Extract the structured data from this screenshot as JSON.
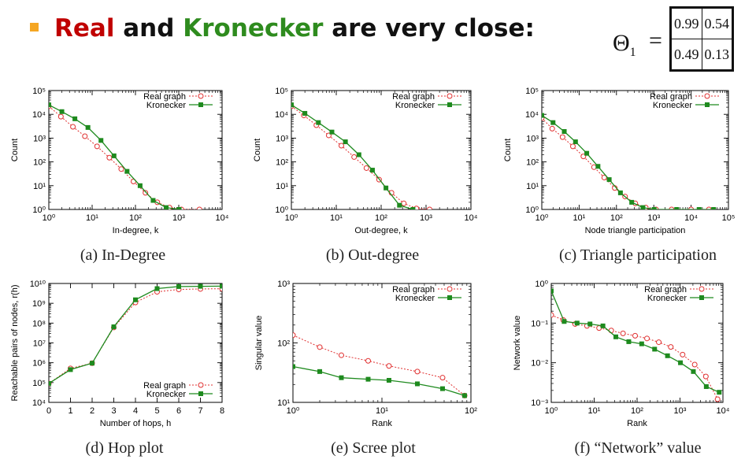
{
  "title": {
    "real": "Real",
    "and": " and ",
    "kron": "Kronecker",
    "rest": " are very close:"
  },
  "theta": {
    "label": "Θ",
    "subscript": "1",
    "equals": "=",
    "matrix": [
      [
        "0.99",
        "0.54"
      ],
      [
        "0.49",
        "0.13"
      ]
    ]
  },
  "colors": {
    "real": "#e03030",
    "kronecker": "#1e8a1e",
    "title_real": "#c00000",
    "title_kronecker": "#2e8b1e",
    "bullet": "#f5a623"
  },
  "chart_data": [
    {
      "type": "line",
      "caption": "(a) In-Degree",
      "xlabel": "In-degree, k",
      "ylabel": "Count",
      "xscale": "log",
      "yscale": "log",
      "xlim": [
        1,
        10000
      ],
      "ylim": [
        1,
        100000
      ],
      "xticks": [
        1,
        10,
        100,
        1000,
        10000
      ],
      "xticklabels": [
        "10⁰",
        "10¹",
        "10²",
        "10³",
        "10⁴"
      ],
      "yticks": [
        1,
        10,
        100,
        1000,
        10000,
        100000
      ],
      "yticklabels": [
        "10⁰",
        "10¹",
        "10²",
        "10³",
        "10⁴",
        "10⁵"
      ],
      "legend_position": "top-right",
      "series": [
        {
          "name": "Real graph",
          "marker": "circle",
          "x": [
            1,
            1.9,
            3.6,
            6.8,
            13,
            25,
            47,
            90,
            170,
            320,
            610,
            1150,
            3000
          ],
          "y": [
            22000,
            8000,
            3000,
            1200,
            450,
            150,
            50,
            15,
            5,
            2,
            1.2,
            1,
            1
          ]
        },
        {
          "name": "Kronecker",
          "marker": "square",
          "x": [
            1,
            2,
            4,
            8,
            16,
            32,
            64,
            128,
            256,
            512,
            1024
          ],
          "y": [
            25000,
            13000,
            6500,
            2800,
            800,
            180,
            40,
            10,
            2.4,
            1.2,
            1
          ]
        }
      ]
    },
    {
      "type": "line",
      "caption": "(b) Out-degree",
      "xlabel": "Out-degree, k",
      "ylabel": "Count",
      "xscale": "log",
      "yscale": "log",
      "xlim": [
        1,
        10000
      ],
      "ylim": [
        1,
        100000
      ],
      "xticks": [
        1,
        10,
        100,
        1000,
        10000
      ],
      "xticklabels": [
        "10⁰",
        "10¹",
        "10²",
        "10³",
        "10⁴"
      ],
      "yticks": [
        1,
        10,
        100,
        1000,
        10000,
        100000
      ],
      "yticklabels": [
        "10⁰",
        "10¹",
        "10²",
        "10³",
        "10⁴",
        "10⁵"
      ],
      "legend_position": "top-right",
      "series": [
        {
          "name": "Real graph",
          "marker": "circle",
          "x": [
            1,
            1.9,
            3.6,
            6.8,
            13,
            25,
            47,
            90,
            170,
            320,
            610,
            1200
          ],
          "y": [
            22000,
            9000,
            3500,
            1300,
            480,
            160,
            55,
            18,
            5,
            1.8,
            1.1,
            1
          ]
        },
        {
          "name": "Kronecker",
          "marker": "square",
          "x": [
            1,
            2,
            4,
            8,
            16,
            32,
            64,
            128,
            256,
            512
          ],
          "y": [
            25000,
            11000,
            4500,
            1800,
            700,
            200,
            45,
            8,
            1.5,
            1
          ]
        }
      ]
    },
    {
      "type": "line",
      "caption": "(c) Triangle participation",
      "xlabel": "Node triangle participation",
      "ylabel": "Count",
      "xscale": "log",
      "yscale": "log",
      "xlim": [
        1,
        100000
      ],
      "ylim": [
        1,
        100000
      ],
      "xticks": [
        1,
        10,
        100,
        1000,
        10000,
        100000
      ],
      "xticklabels": [
        "10⁰",
        "10¹",
        "10²",
        "10³",
        "10⁴",
        "10⁵"
      ],
      "yticks": [
        1,
        10,
        100,
        1000,
        10000,
        100000
      ],
      "yticklabels": [
        "10⁰",
        "10¹",
        "10²",
        "10³",
        "10⁴",
        "10⁵"
      ],
      "legend_position": "top-right",
      "series": [
        {
          "name": "Real graph",
          "marker": "circle",
          "x": [
            1,
            1.9,
            3.6,
            6.8,
            13,
            25,
            47,
            90,
            170,
            320,
            610,
            1150,
            3000,
            10000,
            30000
          ],
          "y": [
            7000,
            2500,
            1100,
            450,
            170,
            60,
            22,
            8,
            3.5,
            1.8,
            1.2,
            1,
            1,
            1,
            1
          ]
        },
        {
          "name": "Kronecker",
          "marker": "square",
          "x": [
            1,
            2,
            4,
            8,
            16,
            32,
            64,
            128,
            256,
            512,
            1024,
            4096,
            16384,
            40000
          ],
          "y": [
            9000,
            4500,
            1900,
            700,
            230,
            65,
            18,
            5,
            2,
            1.2,
            1,
            1,
            1,
            1
          ]
        }
      ]
    },
    {
      "type": "line",
      "caption": "(d) Hop plot",
      "xlabel": "Number of hops, h",
      "ylabel": "Reachable pairs of nodes, r(h)",
      "xscale": "linear",
      "yscale": "log",
      "xlim": [
        0,
        8
      ],
      "ylim": [
        10000,
        10000000000
      ],
      "xticks": [
        0,
        1,
        2,
        3,
        4,
        5,
        6,
        7,
        8
      ],
      "xticklabels": [
        "0",
        "1",
        "2",
        "3",
        "4",
        "5",
        "6",
        "7",
        "8"
      ],
      "yticks": [
        10000,
        100000,
        1000000,
        10000000,
        100000000,
        1000000000,
        10000000000
      ],
      "yticklabels": [
        "10⁴",
        "10⁵",
        "10⁶",
        "10⁷",
        "10⁸",
        "10⁹",
        "10¹⁰"
      ],
      "legend_position": "bottom-right",
      "series": [
        {
          "name": "Real graph",
          "marker": "circle",
          "x": [
            0,
            1,
            2,
            3,
            4,
            5,
            6,
            7,
            8
          ],
          "y": [
            90000,
            520000,
            950000,
            60000000,
            1100000000,
            3800000000,
            5000000000,
            5300000000,
            5400000000
          ]
        },
        {
          "name": "Kronecker",
          "marker": "square",
          "x": [
            0,
            1,
            2,
            3,
            4,
            5,
            6,
            7,
            8
          ],
          "y": [
            90000,
            450000,
            950000,
            65000000,
            1500000000,
            5500000000,
            7000000000,
            7200000000,
            7300000000
          ]
        }
      ]
    },
    {
      "type": "line",
      "caption": "(e) Scree plot",
      "xlabel": "Rank",
      "ylabel": "Singular value",
      "xscale": "log",
      "yscale": "log",
      "xlim": [
        1,
        100
      ],
      "ylim": [
        10,
        1000
      ],
      "xticks": [
        1,
        10,
        100
      ],
      "xticklabels": [
        "10⁰",
        "10¹",
        "10²"
      ],
      "yticks": [
        10,
        100,
        1000
      ],
      "yticklabels": [
        "10¹",
        "10²",
        "10³"
      ],
      "legend_position": "top-right",
      "series": [
        {
          "name": "Real graph",
          "marker": "circle",
          "x": [
            1,
            2,
            3.5,
            7,
            12,
            25,
            48,
            85
          ],
          "y": [
            135,
            85,
            62,
            50,
            41,
            33,
            26,
            13
          ]
        },
        {
          "name": "Kronecker",
          "marker": "square",
          "x": [
            1,
            2,
            3.5,
            7,
            12,
            25,
            48,
            85
          ],
          "y": [
            40,
            33,
            26,
            24.5,
            23.5,
            20.5,
            17,
            13
          ]
        }
      ]
    },
    {
      "type": "line",
      "caption": "(f) “Network” value",
      "xlabel": "Rank",
      "ylabel": "Network value",
      "xscale": "log",
      "yscale": "log",
      "xlim": [
        1,
        10000
      ],
      "ylim": [
        0.001,
        1
      ],
      "xticks": [
        1,
        10,
        100,
        1000,
        10000
      ],
      "xticklabels": [
        "10⁰",
        "10¹",
        "10²",
        "10³",
        "10⁴"
      ],
      "yticks": [
        0.001,
        0.01,
        0.1,
        1
      ],
      "yticklabels": [
        "10⁻³",
        "10⁻²",
        "10⁻¹",
        "10⁰"
      ],
      "legend_position": "top-right",
      "series": [
        {
          "name": "Real graph",
          "marker": "circle",
          "x": [
            1,
            1.9,
            3.6,
            6.8,
            13,
            25,
            47,
            90,
            170,
            320,
            610,
            1150,
            2200,
            4000,
            7500
          ],
          "y": [
            0.16,
            0.12,
            0.095,
            0.085,
            0.075,
            0.065,
            0.055,
            0.048,
            0.041,
            0.033,
            0.025,
            0.016,
            0.009,
            0.0045,
            0.0012
          ]
        },
        {
          "name": "Kronecker",
          "marker": "square",
          "x": [
            1,
            2,
            4,
            8,
            16,
            32,
            64,
            128,
            256,
            512,
            1024,
            2048,
            4096,
            8192
          ],
          "y": [
            0.65,
            0.11,
            0.1,
            0.095,
            0.085,
            0.045,
            0.034,
            0.03,
            0.022,
            0.015,
            0.01,
            0.006,
            0.0025,
            0.0018
          ]
        }
      ]
    }
  ]
}
